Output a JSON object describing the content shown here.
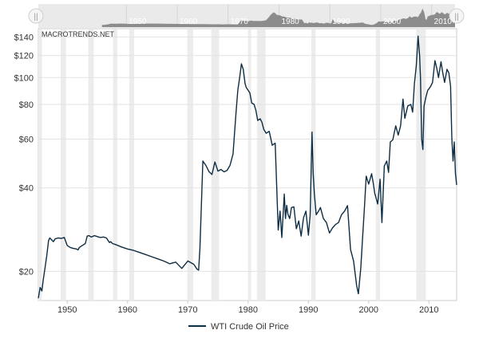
{
  "watermark": "MACROTRENDS.NET",
  "legend": {
    "label": "WTI Crude Oil Price"
  },
  "navigator": {
    "handle_glyph": "||",
    "tick_labels": [
      "1950",
      "1960",
      "1970",
      "1980",
      "1990",
      "2000",
      "2010"
    ]
  },
  "colors": {
    "series": "#0d2d45",
    "recession_band": "#ececec",
    "navigator_fill": "#8c8c8c",
    "grid": "#e2e2e2"
  },
  "chart_data": {
    "type": "line",
    "title": "",
    "xlabel": "",
    "ylabel": "",
    "y_scale": "log",
    "grid": true,
    "legend_position": "bottom-center",
    "x_ticks": [
      "1950",
      "1960",
      "1970",
      "1980",
      "1990",
      "2000",
      "2010"
    ],
    "y_ticks": [
      "$20",
      "$40",
      "$60",
      "$80",
      "$100",
      "$120",
      "$140"
    ],
    "xlim": [
      1945.2,
      2014.6
    ],
    "ylim": [
      15.7,
      150
    ],
    "recession_bands": [
      [
        1945.1,
        1945.8
      ],
      [
        1948.9,
        1949.8
      ],
      [
        1953.5,
        1954.4
      ],
      [
        1957.6,
        1958.3
      ],
      [
        1960.3,
        1961.1
      ],
      [
        1969.9,
        1970.9
      ],
      [
        1973.9,
        1975.2
      ],
      [
        1980.0,
        1980.5
      ],
      [
        1981.5,
        1982.9
      ],
      [
        1990.5,
        1991.2
      ],
      [
        2001.2,
        2001.9
      ],
      [
        2007.9,
        2009.5
      ]
    ],
    "series": [
      {
        "name": "WTI Crude Oil Price",
        "x": [
          1945.2,
          1945.5,
          1945.8,
          1946.0,
          1946.3,
          1946.6,
          1946.9,
          1947.1,
          1947.4,
          1947.7,
          1948.0,
          1948.5,
          1949.0,
          1949.5,
          1950.0,
          1950.5,
          1951.0,
          1951.5,
          1951.8,
          1952.0,
          1952.5,
          1953.0,
          1953.3,
          1953.6,
          1954.0,
          1954.5,
          1955.0,
          1955.5,
          1956.0,
          1956.5,
          1957.0,
          1957.2,
          1957.5,
          1958.0,
          1959.0,
          1960.0,
          1961.0,
          1962.0,
          1963.0,
          1964.0,
          1965.0,
          1966.0,
          1967.0,
          1968.0,
          1969.0,
          1970.0,
          1971.0,
          1971.5,
          1971.8,
          1972.0,
          1972.5,
          1973.0,
          1973.5,
          1974.0,
          1974.5,
          1975.0,
          1975.5,
          1976.0,
          1976.5,
          1977.0,
          1977.5,
          1978.0,
          1978.3,
          1978.6,
          1978.9,
          1979.2,
          1979.5,
          1979.7,
          1980.0,
          1980.3,
          1980.6,
          1981.0,
          1981.3,
          1981.6,
          1982.0,
          1982.3,
          1982.6,
          1983.0,
          1983.5,
          1984.0,
          1984.5,
          1985.0,
          1985.3,
          1985.6,
          1986.0,
          1986.2,
          1986.4,
          1986.6,
          1986.9,
          1987.2,
          1987.6,
          1988.0,
          1988.4,
          1988.8,
          1989.2,
          1989.6,
          1990.0,
          1990.3,
          1990.6,
          1990.8,
          1991.0,
          1991.3,
          1991.7,
          1992.0,
          1992.5,
          1993.0,
          1993.5,
          1994.0,
          1994.5,
          1995.0,
          1995.5,
          1996.0,
          1996.5,
          1997.0,
          1997.5,
          1998.0,
          1998.3,
          1998.7,
          1999.0,
          1999.3,
          1999.6,
          2000.0,
          2000.5,
          2000.8,
          2001.0,
          2001.5,
          2001.9,
          2002.2,
          2002.6,
          2003.0,
          2003.3,
          2003.6,
          2004.0,
          2004.5,
          2004.9,
          2005.3,
          2005.7,
          2006.0,
          2006.5,
          2007.0,
          2007.3,
          2007.6,
          2007.9,
          2008.2,
          2008.45,
          2008.6,
          2008.8,
          2009.0,
          2009.2,
          2009.5,
          2009.8,
          2010.0,
          2010.3,
          2010.6,
          2011.0,
          2011.3,
          2011.6,
          2012.0,
          2012.3,
          2012.6,
          2013.0,
          2013.3,
          2013.6,
          2013.8,
          2014.0,
          2014.2,
          2014.4,
          2014.6
        ],
        "values": [
          16.0,
          17.5,
          17.0,
          18.5,
          20.5,
          22.8,
          25.8,
          26.4,
          26.0,
          25.6,
          26.2,
          26.4,
          26.3,
          26.5,
          24.8,
          24.4,
          24.2,
          24.1,
          23.9,
          24.4,
          24.8,
          25.2,
          26.8,
          26.9,
          26.6,
          26.9,
          26.7,
          26.5,
          26.6,
          26.4,
          25.4,
          25.6,
          25.2,
          25.0,
          24.5,
          24.1,
          23.8,
          23.4,
          23.0,
          22.6,
          22.2,
          21.8,
          21.3,
          21.6,
          20.5,
          21.8,
          21.2,
          20.4,
          20.2,
          24.1,
          50.0,
          48.2,
          45.8,
          44.7,
          49.6,
          46.0,
          46.6,
          45.7,
          46.2,
          48.2,
          53.0,
          75.0,
          90.0,
          100.0,
          112.0,
          107.0,
          95.0,
          92.0,
          90.0,
          88.0,
          81.0,
          80.0,
          76.0,
          70.0,
          71.0,
          69.0,
          65.0,
          63.0,
          64.0,
          57.0,
          58.0,
          28.2,
          33.0,
          26.5,
          38.0,
          31.0,
          34.6,
          32.2,
          31.0,
          34.0,
          34.2,
          28.5,
          30.4,
          26.8,
          31.2,
          33.0,
          27.0,
          31.8,
          63.6,
          45.0,
          38.0,
          32.0,
          33.0,
          34.0,
          31.0,
          30.0,
          27.5,
          28.7,
          29.5,
          30.0,
          32.0,
          33.0,
          34.5,
          24.0,
          21.8,
          17.8,
          16.6,
          20.5,
          26.5,
          34.0,
          44.1,
          41.3,
          45.0,
          41.2,
          38.4,
          35.0,
          43.0,
          30.0,
          48.0,
          50.0,
          45.5,
          58.6,
          59.6,
          67.0,
          62.0,
          67.0,
          83.6,
          71.3,
          79.0,
          80.0,
          75.0,
          95.0,
          110.0,
          141.0,
          120.0,
          100.0,
          60.0,
          55.0,
          79.0,
          85.0,
          90.0,
          91.0,
          93.0,
          96.0,
          115.0,
          108.0,
          100.0,
          114.0,
          104.0,
          96.0,
          107.0,
          104.0,
          93.0,
          60.0,
          50.0,
          58.6,
          45.0,
          41.0
        ]
      }
    ]
  }
}
